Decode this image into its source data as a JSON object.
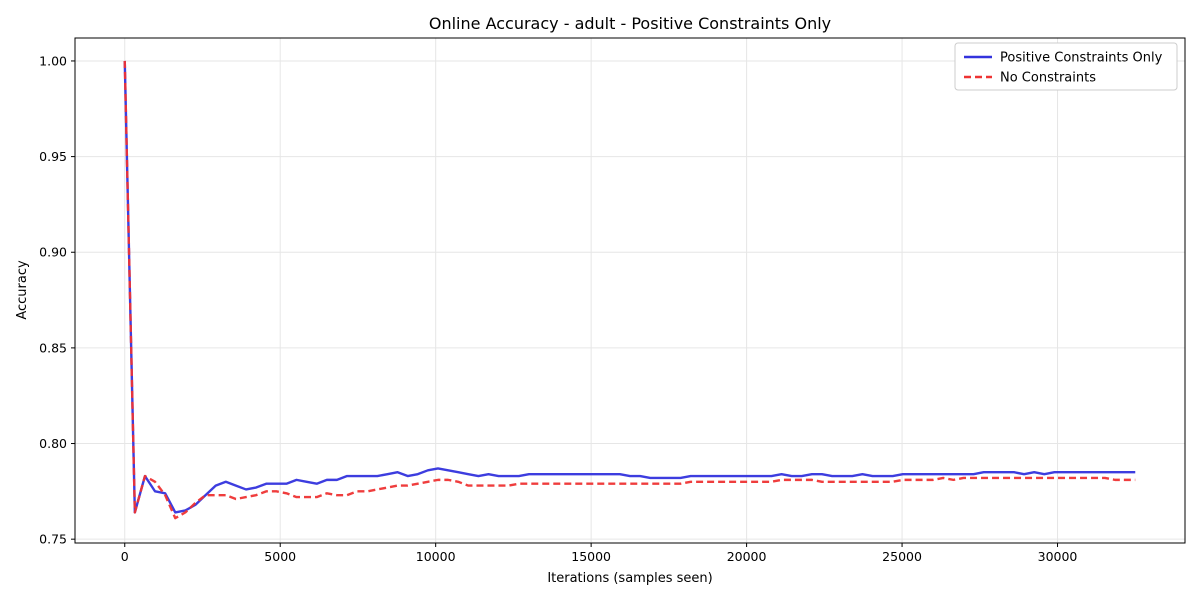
{
  "chart_data": {
    "type": "line",
    "title": "Online Accuracy - adult - Positive Constraints Only",
    "xlabel": "Iterations (samples seen)",
    "ylabel": "Accuracy",
    "xlim": [
      -1600,
      34100
    ],
    "ylim": [
      0.748,
      1.012
    ],
    "xticks": [
      0,
      5000,
      10000,
      15000,
      20000,
      25000,
      30000
    ],
    "yticks": [
      0.75,
      0.8,
      0.85,
      0.9,
      0.95,
      1.0
    ],
    "xtick_labels": [
      "0",
      "5000",
      "10000",
      "15000",
      "20000",
      "25000",
      "30000"
    ],
    "ytick_labels": [
      "0.75",
      "0.80",
      "0.85",
      "0.90",
      "0.95",
      "1.00"
    ],
    "grid": true,
    "legend_position": "top-right",
    "x": [
      0,
      325,
      650,
      975,
      1300,
      1625,
      1950,
      2275,
      2600,
      2925,
      3250,
      3575,
      3900,
      4225,
      4550,
      4875,
      5200,
      5525,
      5850,
      6175,
      6500,
      6825,
      7150,
      7475,
      7800,
      8125,
      8450,
      8775,
      9100,
      9425,
      9750,
      10075,
      10400,
      10725,
      11050,
      11375,
      11700,
      12025,
      12350,
      12675,
      13000,
      13325,
      13650,
      13975,
      14300,
      14625,
      14950,
      15275,
      15600,
      15925,
      16250,
      16575,
      16900,
      17225,
      17550,
      17875,
      18200,
      18525,
      18850,
      19175,
      19500,
      19825,
      20150,
      20475,
      20800,
      21125,
      21450,
      21775,
      22100,
      22425,
      22750,
      23075,
      23400,
      23725,
      24050,
      24375,
      24700,
      25025,
      25350,
      25675,
      26000,
      26325,
      26650,
      26975,
      27300,
      27625,
      27950,
      28275,
      28600,
      28925,
      29250,
      29575,
      29900,
      30225,
      30550,
      30875,
      31200,
      31525,
      31850,
      32175,
      32500
    ],
    "series": [
      {
        "name": "Positive Constraints Only",
        "color": "#3333dd",
        "style": "solid",
        "values": [
          1.0,
          0.764,
          0.783,
          0.775,
          0.774,
          0.764,
          0.765,
          0.768,
          0.773,
          0.778,
          0.78,
          0.778,
          0.776,
          0.777,
          0.779,
          0.779,
          0.779,
          0.781,
          0.78,
          0.779,
          0.781,
          0.781,
          0.783,
          0.783,
          0.783,
          0.783,
          0.784,
          0.785,
          0.783,
          0.784,
          0.786,
          0.787,
          0.786,
          0.785,
          0.784,
          0.783,
          0.784,
          0.783,
          0.783,
          0.783,
          0.784,
          0.784,
          0.784,
          0.784,
          0.784,
          0.784,
          0.784,
          0.784,
          0.784,
          0.784,
          0.783,
          0.783,
          0.782,
          0.782,
          0.782,
          0.782,
          0.783,
          0.783,
          0.783,
          0.783,
          0.783,
          0.783,
          0.783,
          0.783,
          0.783,
          0.784,
          0.783,
          0.783,
          0.784,
          0.784,
          0.783,
          0.783,
          0.783,
          0.784,
          0.783,
          0.783,
          0.783,
          0.784,
          0.784,
          0.784,
          0.784,
          0.784,
          0.784,
          0.784,
          0.784,
          0.785,
          0.785,
          0.785,
          0.785,
          0.784,
          0.785,
          0.784,
          0.785,
          0.785,
          0.785,
          0.785,
          0.785,
          0.785,
          0.785,
          0.785,
          0.785
        ]
      },
      {
        "name": "No Constraints",
        "color": "#ee3333",
        "style": "dashed",
        "values": [
          1.0,
          0.764,
          0.783,
          0.78,
          0.773,
          0.761,
          0.764,
          0.769,
          0.773,
          0.773,
          0.773,
          0.771,
          0.772,
          0.773,
          0.775,
          0.775,
          0.774,
          0.772,
          0.772,
          0.772,
          0.774,
          0.773,
          0.773,
          0.775,
          0.775,
          0.776,
          0.777,
          0.778,
          0.778,
          0.779,
          0.78,
          0.781,
          0.781,
          0.78,
          0.778,
          0.778,
          0.778,
          0.778,
          0.778,
          0.779,
          0.779,
          0.779,
          0.779,
          0.779,
          0.779,
          0.779,
          0.779,
          0.779,
          0.779,
          0.779,
          0.779,
          0.779,
          0.779,
          0.779,
          0.779,
          0.779,
          0.78,
          0.78,
          0.78,
          0.78,
          0.78,
          0.78,
          0.78,
          0.78,
          0.78,
          0.781,
          0.781,
          0.781,
          0.781,
          0.78,
          0.78,
          0.78,
          0.78,
          0.78,
          0.78,
          0.78,
          0.78,
          0.781,
          0.781,
          0.781,
          0.781,
          0.782,
          0.781,
          0.782,
          0.782,
          0.782,
          0.782,
          0.782,
          0.782,
          0.782,
          0.782,
          0.782,
          0.782,
          0.782,
          0.782,
          0.782,
          0.782,
          0.782,
          0.781,
          0.781,
          0.781
        ]
      }
    ]
  }
}
